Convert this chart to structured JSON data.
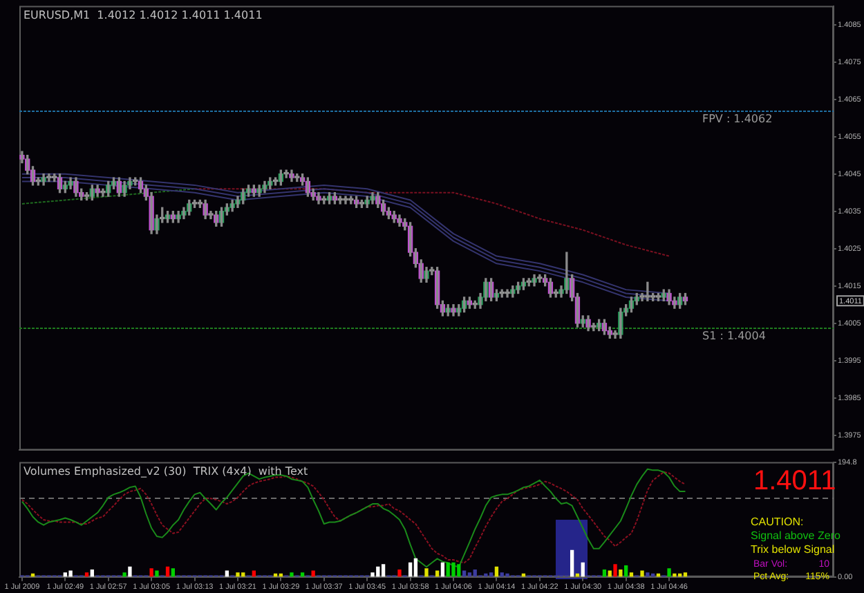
{
  "chart_data": [
    {
      "type": "candlestick",
      "title": "EURUSD,M1  1.4012 1.4012 1.4011 1.4011",
      "categories": [
        "1 Jul 2009",
        null,
        null,
        null,
        null,
        null,
        null,
        null,
        "1 Jul 02:49",
        null,
        null,
        null,
        null,
        null,
        null,
        null,
        "1 Jul 02:57",
        null,
        null,
        null,
        null,
        null,
        null,
        null,
        "1 Jul 03:05",
        null,
        null,
        null,
        null,
        null,
        null,
        null,
        "1 Jul 03:13",
        null,
        null,
        null,
        null,
        null,
        null,
        null,
        "1 Jul 03:21",
        null,
        null,
        null,
        null,
        null,
        null,
        null,
        "1 Jul 03:29",
        null,
        null,
        null,
        null,
        null,
        null,
        null,
        "1 Jul 03:37",
        null,
        null,
        null,
        null,
        null,
        null,
        null,
        "1 Jul 03:45",
        null,
        null,
        null,
        null,
        null,
        null,
        null,
        "1 Jul 03:58",
        null,
        null,
        null,
        null,
        null,
        null,
        null,
        "1 Jul 04:06",
        null,
        null,
        null,
        null,
        null,
        null,
        null,
        "1 Jul 04:14",
        null,
        null,
        null,
        null,
        null,
        null,
        null,
        "1 Jul 04:22",
        null,
        null,
        null,
        null,
        null,
        null,
        null,
        "1 Jul 04:30",
        null,
        null,
        null,
        null,
        null,
        null,
        null,
        "1 Jul 04:38",
        null,
        null,
        null,
        null,
        null,
        null,
        null,
        "1 Jul 04:46",
        null,
        null,
        null,
        null,
        null,
        null,
        null,
        null,
        null,
        null,
        null,
        null,
        null,
        null,
        null,
        null,
        null,
        null,
        null,
        null,
        null,
        null,
        null,
        null,
        null,
        null,
        null,
        null,
        null,
        null
      ],
      "ohlc": [
        [
          1.405,
          1.4051,
          1.4048,
          1.4049
        ],
        [
          1.4049,
          1.405,
          1.4045,
          1.4046
        ],
        [
          1.4046,
          1.4047,
          1.4042,
          1.4043
        ],
        [
          1.4043,
          1.4044,
          1.4042,
          1.4043
        ],
        [
          1.4043,
          1.4045,
          1.4042,
          1.4044
        ],
        [
          1.4044,
          1.4045,
          1.4043,
          1.4044
        ],
        [
          1.4044,
          1.4045,
          1.4043,
          1.4044
        ],
        [
          1.4044,
          1.4045,
          1.404,
          1.4041
        ],
        [
          1.4041,
          1.4043,
          1.404,
          1.4042
        ],
        [
          1.4042,
          1.4044,
          1.4041,
          1.4043
        ],
        [
          1.4043,
          1.4044,
          1.4039,
          1.404
        ],
        [
          1.404,
          1.4041,
          1.4038,
          1.4039
        ],
        [
          1.4039,
          1.404,
          1.4038,
          1.4039
        ],
        [
          1.4039,
          1.4042,
          1.4038,
          1.4041
        ],
        [
          1.4041,
          1.4042,
          1.4039,
          1.404
        ],
        [
          1.404,
          1.4041,
          1.4039,
          1.404
        ],
        [
          1.404,
          1.4043,
          1.4039,
          1.4042
        ],
        [
          1.4042,
          1.4044,
          1.4041,
          1.4043
        ],
        [
          1.4043,
          1.4044,
          1.4039,
          1.404
        ],
        [
          1.404,
          1.4043,
          1.4039,
          1.4042
        ],
        [
          1.4042,
          1.4044,
          1.4041,
          1.4043
        ],
        [
          1.4043,
          1.4044,
          1.4042,
          1.4043
        ],
        [
          1.4043,
          1.4044,
          1.404,
          1.4041
        ],
        [
          1.4041,
          1.4042,
          1.4038,
          1.4039
        ],
        [
          1.4039,
          1.404,
          1.4029,
          1.403
        ],
        [
          1.403,
          1.4034,
          1.4029,
          1.4033
        ],
        [
          1.4033,
          1.4036,
          1.4032,
          1.4033
        ],
        [
          1.4033,
          1.4035,
          1.4032,
          1.4034
        ],
        [
          1.4034,
          1.4035,
          1.4032,
          1.4033
        ],
        [
          1.4033,
          1.4035,
          1.4032,
          1.4034
        ],
        [
          1.4034,
          1.4036,
          1.4033,
          1.4035
        ],
        [
          1.4035,
          1.4038,
          1.4034,
          1.4037
        ],
        [
          1.4037,
          1.4038,
          1.4036,
          1.4037
        ],
        [
          1.4037,
          1.4038,
          1.4036,
          1.4037
        ],
        [
          1.4037,
          1.4038,
          1.4033,
          1.4034
        ],
        [
          1.4034,
          1.4035,
          1.4033,
          1.4034
        ],
        [
          1.4034,
          1.4035,
          1.4031,
          1.4032
        ],
        [
          1.4032,
          1.4036,
          1.4031,
          1.4035
        ],
        [
          1.4035,
          1.4037,
          1.4034,
          1.4036
        ],
        [
          1.4036,
          1.4038,
          1.4035,
          1.4037
        ],
        [
          1.4037,
          1.4039,
          1.4036,
          1.4038
        ],
        [
          1.4038,
          1.4041,
          1.4037,
          1.404
        ],
        [
          1.404,
          1.4042,
          1.4039,
          1.4041
        ],
        [
          1.4041,
          1.4042,
          1.4039,
          1.404
        ],
        [
          1.404,
          1.4042,
          1.4039,
          1.4041
        ],
        [
          1.4041,
          1.4043,
          1.404,
          1.4042
        ],
        [
          1.4042,
          1.4044,
          1.4041,
          1.4043
        ],
        [
          1.4043,
          1.4044,
          1.4042,
          1.4043
        ],
        [
          1.4043,
          1.4046,
          1.4042,
          1.4045
        ],
        [
          1.4045,
          1.4046,
          1.4044,
          1.4045
        ],
        [
          1.4045,
          1.4046,
          1.4043,
          1.4044
        ],
        [
          1.4044,
          1.4045,
          1.4043,
          1.4044
        ],
        [
          1.4044,
          1.4045,
          1.4042,
          1.4043
        ],
        [
          1.4043,
          1.4044,
          1.4039,
          1.404
        ],
        [
          1.404,
          1.4041,
          1.4038,
          1.4039
        ],
        [
          1.4039,
          1.404,
          1.4037,
          1.4038
        ],
        [
          1.4038,
          1.4039,
          1.4037,
          1.4038
        ],
        [
          1.4038,
          1.404,
          1.4037,
          1.4039
        ],
        [
          1.4039,
          1.404,
          1.4037,
          1.4038
        ],
        [
          1.4038,
          1.4039,
          1.4037,
          1.4038
        ],
        [
          1.4038,
          1.4039,
          1.4037,
          1.4038
        ],
        [
          1.4038,
          1.4039,
          1.4037,
          1.4038
        ],
        [
          1.4038,
          1.4039,
          1.4036,
          1.4037
        ],
        [
          1.4037,
          1.4038,
          1.4036,
          1.4037
        ],
        [
          1.4037,
          1.4039,
          1.4036,
          1.4038
        ],
        [
          1.4038,
          1.404,
          1.4037,
          1.4039
        ],
        [
          1.4039,
          1.404,
          1.4036,
          1.4037
        ],
        [
          1.4037,
          1.4038,
          1.4034,
          1.4035
        ],
        [
          1.4035,
          1.4036,
          1.4033,
          1.4034
        ],
        [
          1.4034,
          1.4035,
          1.4032,
          1.4033
        ],
        [
          1.4033,
          1.4034,
          1.4031,
          1.4032
        ],
        [
          1.4032,
          1.4033,
          1.403,
          1.4031
        ],
        [
          1.4031,
          1.4032,
          1.4023,
          1.4024
        ],
        [
          1.4024,
          1.4025,
          1.402,
          1.4021
        ],
        [
          1.4021,
          1.4022,
          1.4016,
          1.4017
        ],
        [
          1.4017,
          1.402,
          1.4016,
          1.4019
        ],
        [
          1.4019,
          1.402,
          1.4018,
          1.4019
        ],
        [
          1.4019,
          1.402,
          1.4009,
          1.401
        ],
        [
          1.401,
          1.4011,
          1.4007,
          1.4008
        ],
        [
          1.4008,
          1.401,
          1.4007,
          1.4009
        ],
        [
          1.4009,
          1.401,
          1.4007,
          1.4008
        ],
        [
          1.4008,
          1.401,
          1.4007,
          1.4009
        ],
        [
          1.4009,
          1.4012,
          1.4008,
          1.4011
        ],
        [
          1.4011,
          1.4012,
          1.4009,
          1.401
        ],
        [
          1.401,
          1.4011,
          1.4009,
          1.401
        ],
        [
          1.401,
          1.4013,
          1.4009,
          1.4012
        ],
        [
          1.4012,
          1.4017,
          1.4011,
          1.4016
        ],
        [
          1.4016,
          1.4017,
          1.4011,
          1.4012
        ],
        [
          1.4012,
          1.4014,
          1.4011,
          1.4013
        ],
        [
          1.4013,
          1.4014,
          1.4012,
          1.4013
        ],
        [
          1.4013,
          1.4014,
          1.4012,
          1.4013
        ],
        [
          1.4013,
          1.4015,
          1.4012,
          1.4014
        ],
        [
          1.4014,
          1.4016,
          1.4013,
          1.4015
        ],
        [
          1.4015,
          1.4017,
          1.4014,
          1.4016
        ],
        [
          1.4016,
          1.4017,
          1.4015,
          1.4016
        ],
        [
          1.4016,
          1.4018,
          1.4015,
          1.4017
        ],
        [
          1.4017,
          1.4018,
          1.4016,
          1.4017
        ],
        [
          1.4017,
          1.4018,
          1.4015,
          1.4016
        ],
        [
          1.4016,
          1.4017,
          1.4012,
          1.4013
        ],
        [
          1.4013,
          1.4014,
          1.4012,
          1.4013
        ],
        [
          1.4013,
          1.4015,
          1.4012,
          1.4014
        ],
        [
          1.4014,
          1.4024,
          1.4013,
          1.4017
        ],
        [
          1.4017,
          1.4018,
          1.4011,
          1.4012
        ],
        [
          1.4012,
          1.4013,
          1.4004,
          1.4005
        ],
        [
          1.4005,
          1.4007,
          1.4004,
          1.4006
        ],
        [
          1.4006,
          1.4007,
          1.4003,
          1.4004
        ],
        [
          1.4004,
          1.4005,
          1.4003,
          1.4004
        ],
        [
          1.4004,
          1.4006,
          1.4003,
          1.4005
        ],
        [
          1.4005,
          1.4006,
          1.4002,
          1.4003
        ],
        [
          1.4003,
          1.4004,
          1.4001,
          1.4002
        ],
        [
          1.4002,
          1.4003,
          1.4001,
          1.4002
        ],
        [
          1.4002,
          1.4009,
          1.4001,
          1.4008
        ],
        [
          1.4008,
          1.401,
          1.4007,
          1.4009
        ],
        [
          1.4009,
          1.4012,
          1.4008,
          1.4011
        ],
        [
          1.4011,
          1.4013,
          1.401,
          1.4012
        ],
        [
          1.4012,
          1.4013,
          1.4011,
          1.4012
        ],
        [
          1.4012,
          1.4016,
          1.4011,
          1.4012
        ],
        [
          1.4012,
          1.4013,
          1.4011,
          1.4012
        ],
        [
          1.4012,
          1.4013,
          1.4011,
          1.4012
        ],
        [
          1.4012,
          1.4014,
          1.4011,
          1.4013
        ],
        [
          1.4013,
          1.4014,
          1.401,
          1.4011
        ],
        [
          1.4011,
          1.4012,
          1.4009,
          1.401
        ],
        [
          1.401,
          1.4013,
          1.4009,
          1.4012
        ],
        [
          1.4012,
          1.4013,
          1.401,
          1.4011
        ],
        null,
        null,
        null,
        null,
        null,
        null,
        null,
        null,
        null,
        null,
        null,
        null,
        null,
        null,
        null,
        null,
        null,
        null,
        null,
        null,
        null,
        null,
        null,
        null,
        null,
        null,
        null
      ],
      "series": [
        {
          "type": "line",
          "color": "#34346e",
          "x": [
            "1 Jul 2009",
            "1 Jul 02:49",
            "1 Jul 02:57",
            "1 Jul 03:05",
            "1 Jul 03:13",
            "1 Jul 03:21",
            "1 Jul 03:29",
            "1 Jul 03:37",
            "1 Jul 03:45",
            "1 Jul 03:58",
            "1 Jul 04:06",
            "1 Jul 04:14",
            "1 Jul 04:22",
            "1 Jul 04:30",
            "1 Jul 04:38",
            "1 Jul 04:46"
          ],
          "values": [
            1.4045,
            1.4045,
            1.4044,
            1.4043,
            1.4042,
            1.404,
            1.4041,
            1.4042,
            1.4041,
            1.4038,
            1.4029,
            1.4023,
            1.4021,
            1.4018,
            1.4014,
            1.4013
          ]
        },
        {
          "type": "line",
          "color": "#34346e",
          "x": [
            "1 Jul 2009",
            "1 Jul 02:49",
            "1 Jul 02:57",
            "1 Jul 03:05",
            "1 Jul 03:13",
            "1 Jul 03:21",
            "1 Jul 03:29",
            "1 Jul 03:37",
            "1 Jul 03:45",
            "1 Jul 03:58",
            "1 Jul 04:06",
            "1 Jul 04:14",
            "1 Jul 04:22",
            "1 Jul 04:30",
            "1 Jul 04:38",
            "1 Jul 04:46"
          ],
          "values": [
            1.4044,
            1.4044,
            1.4043,
            1.4042,
            1.4041,
            1.4039,
            1.404,
            1.4041,
            1.404,
            1.4037,
            1.4028,
            1.4022,
            1.402,
            1.4017,
            1.4013,
            1.4012
          ]
        },
        {
          "type": "line",
          "color": "#34346e",
          "x": [
            "1 Jul 2009",
            "1 Jul 02:49",
            "1 Jul 02:57",
            "1 Jul 03:05",
            "1 Jul 03:13",
            "1 Jul 03:21",
            "1 Jul 03:29",
            "1 Jul 03:37",
            "1 Jul 03:45",
            "1 Jul 03:58",
            "1 Jul 04:06",
            "1 Jul 04:14",
            "1 Jul 04:22",
            "1 Jul 04:30",
            "1 Jul 04:38",
            "1 Jul 04:46"
          ],
          "values": [
            1.4043,
            1.4043,
            1.4042,
            1.4041,
            1.404,
            1.4038,
            1.4039,
            1.404,
            1.4039,
            1.4036,
            1.4027,
            1.4021,
            1.4019,
            1.4016,
            1.4012,
            1.4011
          ]
        },
        {
          "type": "line",
          "color": "#1f6a1f",
          "line_style": "dotted",
          "x": [
            "1 Jul 2009",
            "1 Jul 02:49",
            "1 Jul 02:57",
            "1 Jul 03:05",
            "1 Jul 03:13"
          ],
          "values": [
            1.4037,
            1.4038,
            1.4039,
            1.404,
            1.4041
          ]
        },
        {
          "type": "line",
          "color": "#7a1020",
          "line_style": "dotted",
          "x": [
            "1 Jul 03:13",
            "1 Jul 03:21",
            "1 Jul 03:29",
            "1 Jul 03:37",
            "1 Jul 03:45",
            "1 Jul 03:58",
            "1 Jul 04:06",
            "1 Jul 04:14",
            "1 Jul 04:22",
            "1 Jul 04:30",
            "1 Jul 04:38",
            "1 Jul 04:46"
          ],
          "values": [
            1.4041,
            1.4041,
            1.4041,
            1.4041,
            1.404,
            1.404,
            1.404,
            1.4037,
            1.4033,
            1.403,
            1.4026,
            1.4023
          ]
        }
      ],
      "ylim": [
        1.3971,
        1.409
      ],
      "yticks": [
        1.4085,
        1.4075,
        1.4065,
        1.4055,
        1.4045,
        1.4035,
        1.4025,
        1.4015,
        1.4005,
        1.3995,
        1.3985,
        1.3975
      ],
      "ref_lines": [
        {
          "axis": "y",
          "value": 1.4062,
          "label": "FPV : 1.4062",
          "color": "#1e6ea0",
          "line_style": "dotted"
        },
        {
          "axis": "y",
          "value": 1.4004,
          "label": "S1 : 1.4004",
          "color": "#1e7a1e",
          "line_style": "dotted"
        }
      ],
      "annotations": [
        {
          "text": "1.4011",
          "y": 1.4011
        }
      ],
      "tick_labels": "y"
    },
    {
      "type": "bar",
      "title": "Volumes Emphasized_v2 (30)  TRIX (4x4)  with Text",
      "categories": [
        "1 Jul 2009",
        null,
        null,
        null,
        null,
        null,
        null,
        null,
        "1 Jul 02:49",
        null,
        null,
        null,
        null,
        null,
        null,
        null,
        "1 Jul 02:57",
        null,
        null,
        null,
        null,
        null,
        null,
        null,
        "1 Jul 03:05",
        null,
        null,
        null,
        null,
        null,
        null,
        null,
        "1 Jul 03:13",
        null,
        null,
        null,
        null,
        null,
        null,
        null,
        "1 Jul 03:21",
        null,
        null,
        null,
        null,
        null,
        null,
        null,
        "1 Jul 03:29",
        null,
        null,
        null,
        null,
        null,
        null,
        null,
        "1 Jul 03:37",
        null,
        null,
        null,
        null,
        null,
        null,
        null,
        "1 Jul 03:45",
        null,
        null,
        null,
        null,
        null,
        null,
        null,
        "1 Jul 03:58",
        null,
        null,
        null,
        null,
        null,
        null,
        null,
        "1 Jul 04:06",
        null,
        null,
        null,
        null,
        null,
        null,
        null,
        "1 Jul 04:14",
        null,
        null,
        null,
        null,
        null,
        null,
        null,
        "1 Jul 04:22",
        null,
        null,
        null,
        null,
        null,
        null,
        null,
        "1 Jul 04:30",
        null,
        null,
        null,
        null,
        null,
        null,
        null,
        "1 Jul 04:38",
        null,
        null,
        null,
        null,
        null,
        null,
        null,
        "1 Jul 04:46",
        null,
        null,
        null,
        null,
        null,
        null,
        null,
        null,
        null,
        null,
        null,
        null,
        null,
        null,
        null,
        null,
        null,
        null,
        null,
        null,
        null,
        null,
        null,
        null,
        null,
        null,
        null,
        null,
        null,
        null
      ],
      "series": [
        {
          "type": "bar",
          "values": [
            2,
            2,
            5,
            2,
            2,
            2,
            2,
            2,
            7,
            10,
            2,
            2,
            7,
            12,
            2,
            2,
            2,
            2,
            2,
            7,
            17,
            2,
            2,
            2,
            14,
            10,
            2,
            17,
            14,
            2,
            2,
            2,
            2,
            2,
            2,
            2,
            2,
            2,
            10,
            2,
            7,
            7,
            2,
            10,
            2,
            2,
            2,
            5,
            5,
            2,
            7,
            2,
            7,
            2,
            10,
            2,
            2,
            2,
            2,
            2,
            2,
            2,
            2,
            2,
            2,
            7,
            17,
            21,
            2,
            2,
            12,
            2,
            24,
            31,
            2,
            14,
            2,
            10,
            24,
            24,
            24,
            21,
            10,
            7,
            12,
            2,
            5,
            7,
            17,
            7,
            5,
            2,
            2,
            5,
            2,
            2,
            2,
            2,
            2,
            2,
            2,
            2,
            45,
            5,
            24,
            2,
            2,
            2,
            12,
            10,
            21,
            12,
            19,
            7,
            2,
            10,
            7,
            5,
            5,
            2,
            14,
            5,
            5,
            7,
            null,
            null,
            null,
            null,
            null,
            null,
            null,
            null,
            null,
            null,
            null,
            null,
            null,
            null,
            null,
            null,
            null,
            null,
            null,
            null,
            null,
            null,
            null,
            null,
            null,
            null,
            null
          ],
          "colors": [
            "#3c3ca0",
            "#3c3ca0",
            "#e0e000",
            "#3c3ca0",
            "#3c3ca0",
            "#3c3ca0",
            "#3c3ca0",
            "#3c3ca0",
            "#ffffff",
            "#ffffff",
            "#3c3ca0",
            "#3c3ca0",
            "#ff0000",
            "#ffffff",
            "#3c3ca0",
            "#3c3ca0",
            "#3c3ca0",
            "#3c3ca0",
            "#3c3ca0",
            "#00d000",
            "#ffffff",
            "#3c3ca0",
            "#3c3ca0",
            "#3c3ca0",
            "#ff0000",
            "#00d000",
            "#3c3ca0",
            "#ff0000",
            "#00d000",
            "#3c3ca0",
            "#3c3ca0",
            "#3c3ca0",
            "#3c3ca0",
            "#3c3ca0",
            "#3c3ca0",
            "#3c3ca0",
            "#3c3ca0",
            "#3c3ca0",
            "#ffffff",
            "#3c3ca0",
            "#e0e000",
            "#e0e000",
            "#3c3ca0",
            "#ff0000",
            "#3c3ca0",
            "#3c3ca0",
            "#3c3ca0",
            "#e0e000",
            "#e0e000",
            "#3c3ca0",
            "#00d000",
            "#3c3ca0",
            "#00d000",
            "#3c3ca0",
            "#ff0000",
            "#3c3ca0",
            "#3c3ca0",
            "#3c3ca0",
            "#3c3ca0",
            "#3c3ca0",
            "#3c3ca0",
            "#3c3ca0",
            "#3c3ca0",
            "#3c3ca0",
            "#3c3ca0",
            "#ffffff",
            "#ffffff",
            "#ffffff",
            "#3c3ca0",
            "#3c3ca0",
            "#ff0000",
            "#3c3ca0",
            "#ffffff",
            "#ffffff",
            "#3c3ca0",
            "#e0e000",
            "#3c3ca0",
            "#e0e000",
            "#ffffff",
            "#00d000",
            "#00d000",
            "#00d000",
            "#3c3ca0",
            "#3c3ca0",
            "#3c3ca0",
            "#3c3ca0",
            "#3c3ca0",
            "#3c3ca0",
            "#e0e000",
            "#3c3ca0",
            "#3c3ca0",
            "#3c3ca0",
            "#3c3ca0",
            "#e0e000",
            "#3c3ca0",
            "#3c3ca0",
            "#3c3ca0",
            "#3c3ca0",
            "#3c3ca0",
            "#3c3ca0",
            "#3c3ca0",
            "#3c3ca0",
            "#ffffff",
            "#e0e000",
            "#ffffff",
            "#3c3ca0",
            "#3c3ca0",
            "#3c3ca0",
            "#00d000",
            "#e0e000",
            "#ff0000",
            "#e0e000",
            "#00d000",
            "#e0e000",
            "#3c3ca0",
            "#e0e000",
            "#3c3ca0",
            "#3c3ca0",
            "#e0e000",
            "#3c3ca0",
            "#00d000",
            "#e0e000",
            "#e0e000",
            "#e0e000",
            null,
            null,
            null,
            null,
            null,
            null,
            null,
            null,
            null,
            null,
            null,
            null,
            null,
            null,
            null,
            null,
            null,
            null,
            null,
            null,
            null,
            null,
            null,
            null,
            null,
            null,
            null
          ]
        },
        {
          "type": "line",
          "color": "#1a8a1a",
          "values": [
            128,
            116,
            102,
            93,
            88,
            93,
            95,
            97,
            100,
            97,
            93,
            88,
            95,
            102,
            109,
            121,
            135,
            140,
            143,
            147,
            152,
            154,
            135,
            107,
            83,
            69,
            67,
            76,
            88,
            97,
            114,
            128,
            140,
            143,
            133,
            124,
            114,
            126,
            135,
            147,
            159,
            171,
            176,
            171,
            166,
            169,
            171,
            173,
            173,
            171,
            166,
            164,
            162,
            152,
            131,
            112,
            90,
            93,
            93,
            95,
            100,
            105,
            109,
            114,
            119,
            124,
            124,
            116,
            112,
            105,
            97,
            81,
            55,
            31,
            24,
            17,
            24,
            31,
            26,
            24,
            19,
            17,
            38,
            59,
            81,
            100,
            121,
            135,
            138,
            140,
            140,
            143,
            147,
            152,
            154,
            159,
            164,
            154,
            145,
            133,
            124,
            126,
            121,
            102,
            83,
            64,
            48,
            48,
            59,
            71,
            83,
            95,
            116,
            138,
            157,
            171,
            183,
            181,
            181,
            178,
            169,
            154,
            145,
            145,
            null,
            null,
            null,
            null,
            null,
            null,
            null,
            null,
            null,
            null,
            null,
            null,
            null,
            null,
            null,
            null,
            null,
            null,
            null,
            null,
            null,
            null,
            null,
            null,
            null,
            null,
            null
          ]
        },
        {
          "type": "line",
          "color": "#8a1020",
          "line_style": "dotted",
          "values": [
            131,
            124,
            114,
            105,
            97,
            95,
            95,
            93,
            93,
            93,
            93,
            90,
            90,
            95,
            100,
            102,
            112,
            121,
            131,
            140,
            145,
            147,
            150,
            140,
            124,
            105,
            88,
            81,
            74,
            76,
            88,
            100,
            112,
            124,
            133,
            133,
            131,
            128,
            124,
            128,
            135,
            145,
            154,
            159,
            162,
            164,
            166,
            169,
            169,
            171,
            169,
            166,
            162,
            159,
            154,
            143,
            131,
            116,
            102,
            95,
            100,
            105,
            109,
            114,
            119,
            119,
            121,
            121,
            124,
            116,
            112,
            105,
            97,
            90,
            76,
            62,
            48,
            40,
            36,
            29,
            29,
            26,
            24,
            31,
            50,
            67,
            86,
            102,
            116,
            128,
            133,
            140,
            147,
            150,
            152,
            154,
            157,
            162,
            159,
            154,
            150,
            145,
            138,
            131,
            116,
            105,
            93,
            81,
            69,
            62,
            52,
            59,
            67,
            74,
            95,
            121,
            147,
            164,
            171,
            178,
            176,
            169,
            162,
            157,
            null,
            null,
            null,
            null,
            null,
            null,
            null,
            null,
            null,
            null,
            null,
            null,
            null,
            null,
            null,
            null,
            null,
            null,
            null,
            null,
            null,
            null,
            null,
            null,
            null,
            null,
            null
          ]
        }
      ],
      "ylim": [
        0,
        194.8
      ],
      "yticks": [
        {
          "value": 0,
          "label": "0.00"
        },
        194.8
      ],
      "ref_lines": [
        {
          "axis": "y",
          "value": 135,
          "color": "#6a6a6a",
          "line_style": "dashed"
        }
      ],
      "annotations": [
        "1.4011",
        "CAUTION:",
        "Signal above Zero",
        "Trix below Signal",
        "Bar Vol:",
        "10",
        "Pct Avg:",
        "115%"
      ]
    }
  ]
}
